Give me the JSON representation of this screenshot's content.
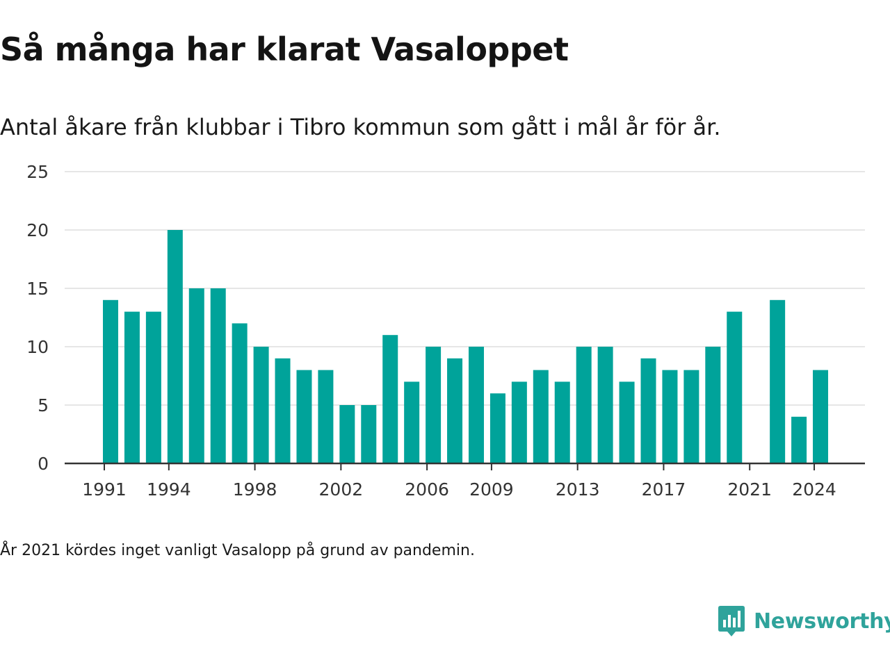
{
  "title": "Så många har klarat Vasaloppet",
  "subtitle": "Antal åkare från klubbar i Tibro kommun som gått i mål år för år.",
  "note": "År 2021 kördes inget vanligt Vasalopp på grund av pandemin.",
  "brand": {
    "name": "Newsworthy",
    "color": "#2fa39b",
    "icon": "newsworthy-logo-icon"
  },
  "colors": {
    "bar": "#00a39a",
    "grid": "#dddddd",
    "axis": "#333333",
    "tick_text": "#333333"
  },
  "chart_data": {
    "type": "bar",
    "x": [
      1991,
      1992,
      1993,
      1994,
      1995,
      1996,
      1997,
      1998,
      1999,
      2000,
      2001,
      2002,
      2003,
      2004,
      2005,
      2006,
      2007,
      2008,
      2009,
      2010,
      2011,
      2012,
      2013,
      2014,
      2015,
      2016,
      2017,
      2018,
      2019,
      2020,
      2021,
      2022,
      2023,
      2024
    ],
    "values": [
      14,
      13,
      13,
      20,
      15,
      15,
      12,
      10,
      9,
      8,
      8,
      5,
      5,
      11,
      7,
      10,
      9,
      10,
      6,
      7,
      8,
      7,
      10,
      10,
      7,
      9,
      8,
      8,
      10,
      13,
      0,
      14,
      4,
      8
    ],
    "x_tick_labels": [
      1991,
      1994,
      1998,
      2002,
      2006,
      2009,
      2013,
      2017,
      2021,
      2024
    ],
    "y_ticks": [
      0,
      5,
      10,
      15,
      20,
      25
    ],
    "ylim": [
      0,
      25
    ],
    "xlabel": "",
    "ylabel": "",
    "grid": true,
    "legend": "none"
  }
}
